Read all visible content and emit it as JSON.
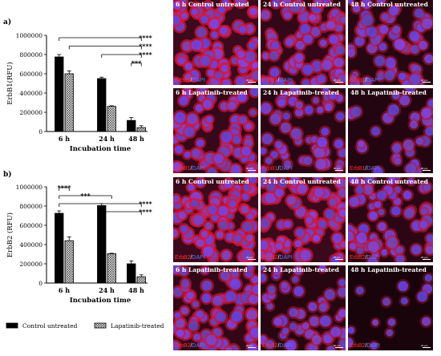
{
  "colors": {
    "control": "#000000",
    "lapatinib_hatch": "#4a4a4a",
    "marker": "#ff3030",
    "dapi": "#5a78ff"
  },
  "chart_data": [
    {
      "type": "bar",
      "panel_label": "a)",
      "ylabel": "ErbB1(RFU)",
      "xlabel": "Incubation time",
      "categories": [
        "6 h",
        "24 h",
        "48 h"
      ],
      "ylim": [
        0,
        1000000
      ],
      "yticks": [
        0,
        200000,
        400000,
        600000,
        800000,
        1000000
      ],
      "ytick_labels": [
        "0",
        "200000",
        "400000",
        "600000",
        "800000",
        "1000000"
      ],
      "series": [
        {
          "name": "Control untreated",
          "values": [
            775000,
            550000,
            115000
          ],
          "errors": [
            25000,
            15000,
            30000
          ]
        },
        {
          "name": "Lapatinib-treated",
          "values": [
            600000,
            262000,
            40000
          ],
          "errors": [
            30000,
            5000,
            20000
          ]
        }
      ],
      "significance": [
        {
          "label": "****",
          "from": [
            0,
            0
          ],
          "to": [
            2,
            1
          ]
        },
        {
          "label": "****",
          "from": [
            0,
            1
          ],
          "to": [
            2,
            1
          ]
        },
        {
          "label": "****",
          "from": [
            1,
            0
          ],
          "to": [
            2,
            1
          ]
        },
        {
          "label": "***",
          "from": [
            2,
            0
          ],
          "to": [
            2,
            1
          ]
        }
      ]
    },
    {
      "type": "bar",
      "panel_label": "b)",
      "ylabel": "ErbB2 (RFU)",
      "xlabel": "Incubation time",
      "categories": [
        "6 h",
        "24 h",
        "48 h"
      ],
      "ylim": [
        0,
        1000000
      ],
      "yticks": [
        0,
        200000,
        400000,
        600000,
        800000,
        1000000
      ],
      "ytick_labels": [
        "0",
        "200000",
        "400000",
        "600000",
        "800000",
        "1000000"
      ],
      "series": [
        {
          "name": "Control untreated",
          "values": [
            725000,
            805000,
            200000
          ],
          "errors": [
            25000,
            20000,
            30000
          ]
        },
        {
          "name": "Lapatinib-treated",
          "values": [
            440000,
            305000,
            65000
          ],
          "errors": [
            40000,
            5000,
            20000
          ]
        }
      ],
      "significance": [
        {
          "label": "****",
          "from": [
            0,
            0
          ],
          "to": [
            0,
            1
          ]
        },
        {
          "label": "***",
          "from": [
            0,
            0
          ],
          "to": [
            1,
            1
          ]
        },
        {
          "label": "****",
          "from": [
            0,
            0
          ],
          "to": [
            2,
            1
          ]
        },
        {
          "label": "****",
          "from": [
            1,
            0
          ],
          "to": [
            2,
            1
          ]
        }
      ]
    }
  ],
  "legend": {
    "items": [
      {
        "label": "Control untreated"
      },
      {
        "label": "Lapatinib-treated"
      }
    ]
  },
  "micrographs": [
    {
      "title": "6 h Control untreated",
      "marker": "ErbB1",
      "sep": "/",
      "stain": "DAPI",
      "scale": "20 µm",
      "cell_density": 0.95,
      "red_intensity": 0.9
    },
    {
      "title": "24 h Control untreated",
      "marker": "ErbB1",
      "sep": "/",
      "stain": "DAPI",
      "scale": "20 µm",
      "cell_density": 0.9,
      "red_intensity": 0.7
    },
    {
      "title": "48 h Control untreated",
      "marker": "ErbB1",
      "sep": "/",
      "stain": "DAPI",
      "scale": "20 µm",
      "cell_density": 0.75,
      "red_intensity": 0.45
    },
    {
      "title": "6 h Lapatinib-treated",
      "marker": "ErbB1",
      "sep": "/",
      "stain": "DAPI",
      "scale": "20 µm",
      "cell_density": 0.85,
      "red_intensity": 0.75
    },
    {
      "title": "24 h Lapatinib-treated",
      "marker": "ErbB1",
      "sep": "/",
      "stain": "DAPI",
      "scale": "20 µm",
      "cell_density": 0.6,
      "red_intensity": 0.5
    },
    {
      "title": "48 h Lapatinib-treated",
      "marker": "ErbB1",
      "sep": "/",
      "stain": "DAPI",
      "scale": "20 µm",
      "cell_density": 0.3,
      "red_intensity": 0.35
    },
    {
      "title": "6 h Control untreated",
      "marker": "ErbB2",
      "sep": "/",
      "stain": "DAPI",
      "scale": "20 µm",
      "cell_density": 0.95,
      "red_intensity": 0.9
    },
    {
      "title": "24 h Control untreated",
      "marker": "ErbB2",
      "sep": "/",
      "stain": "DAPI",
      "scale": "20 µm",
      "cell_density": 0.95,
      "red_intensity": 0.85
    },
    {
      "title": "48 h Control untreated",
      "marker": "ErbB2",
      "sep": "/",
      "stain": "DAPI",
      "scale": "20 µm",
      "cell_density": 0.8,
      "red_intensity": 0.55
    },
    {
      "title": "6 h Lapatinib-treated",
      "marker": "ErbB2",
      "sep": "/",
      "stain": "DAPI",
      "scale": "20 µm",
      "cell_density": 0.85,
      "red_intensity": 0.7
    },
    {
      "title": "24 h Lapatinib-treated",
      "marker": "ErbB2",
      "sep": "/",
      "stain": "DAPI",
      "scale": "20 µm",
      "cell_density": 0.55,
      "red_intensity": 0.45
    },
    {
      "title": "48 h Lapatinib-treated",
      "marker": "ErbB2",
      "sep": "/",
      "stain": "DAPI",
      "scale": "20 µm",
      "cell_density": 0.05,
      "red_intensity": 0.2
    }
  ]
}
